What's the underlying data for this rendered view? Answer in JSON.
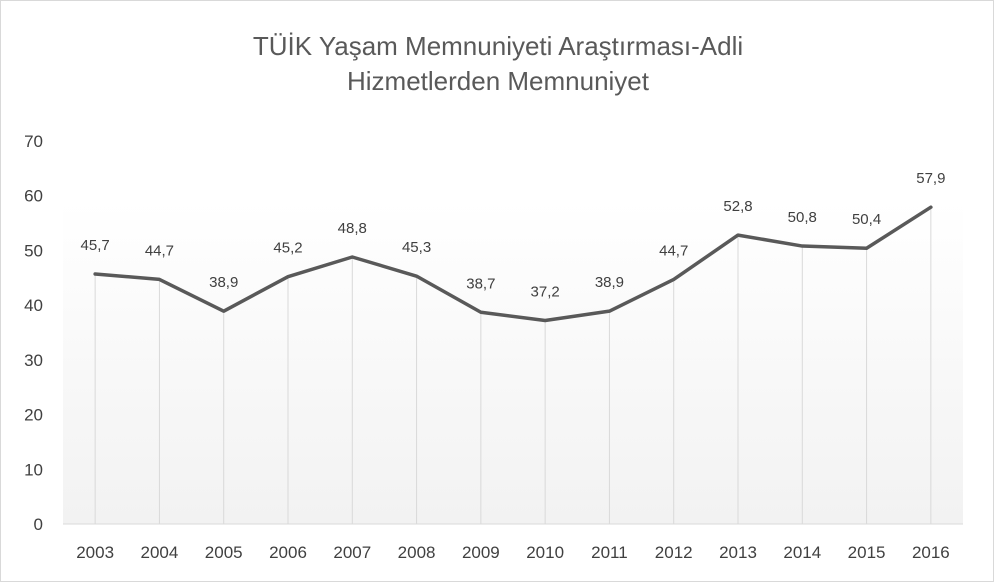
{
  "chart_data": {
    "type": "line",
    "title_lines": [
      "TÜİK Yaşam Memnuniyeti Araştırması-Adli",
      "Hizmetlerden Memnuniyet"
    ],
    "categories": [
      "2003",
      "2004",
      "2005",
      "2006",
      "2007",
      "2008",
      "2009",
      "2010",
      "2011",
      "2012",
      "2013",
      "2014",
      "2015",
      "2016"
    ],
    "series": [
      {
        "values": [
          45.7,
          44.7,
          38.9,
          45.2,
          48.8,
          45.3,
          38.7,
          37.2,
          38.9,
          44.7,
          52.8,
          50.8,
          50.4,
          57.9
        ],
        "value_labels": [
          "45,7",
          "44,7",
          "38,9",
          "45,2",
          "48,8",
          "45,3",
          "38,7",
          "37,2",
          "38,9",
          "44,7",
          "52,8",
          "50,8",
          "50,4",
          "57,9"
        ],
        "color": "#595959"
      }
    ],
    "y_ticks": [
      "0",
      "10",
      "20",
      "30",
      "40",
      "50",
      "60",
      "70"
    ],
    "ylim": [
      0,
      70
    ],
    "xlabel": "",
    "ylabel": "",
    "grid": "vertical drop lines",
    "legend": "none",
    "background_gradient": [
      "#ffffff",
      "#f2f2f2"
    ]
  }
}
